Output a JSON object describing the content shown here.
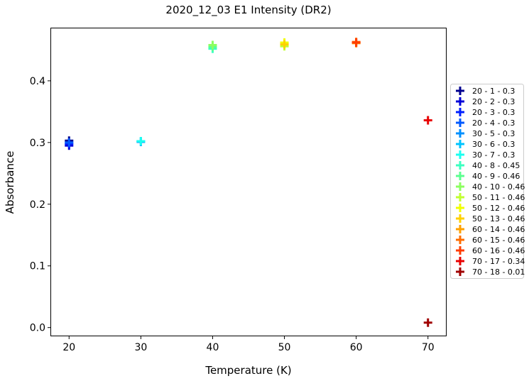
{
  "chart_data": {
    "type": "scatter",
    "title": "2020_12_03 E1 Intensity (DR2)",
    "xlabel": "Temperature (K)",
    "ylabel": "Absorbance",
    "xlim": [
      17.5,
      72.5
    ],
    "ylim": [
      -0.013,
      0.485
    ],
    "xticks": [
      20,
      30,
      40,
      50,
      60,
      70
    ],
    "yticks": [
      0.0,
      0.1,
      0.2,
      0.3,
      0.4
    ],
    "ytick_labels": [
      "0.0",
      "0.1",
      "0.2",
      "0.3",
      "0.4"
    ],
    "marker": "plus",
    "grid": false,
    "legend_position": "center-right outside",
    "series": [
      {
        "name": "20 - 1 - 0.3",
        "x": 20,
        "y": 0.303,
        "color": "#00008f"
      },
      {
        "name": "20 - 2 - 0.3",
        "x": 20,
        "y": 0.295,
        "color": "#0000d8"
      },
      {
        "name": "20 - 3 - 0.3",
        "x": 20,
        "y": 0.298,
        "color": "#0020ff"
      },
      {
        "name": "20 - 4 - 0.3",
        "x": 20,
        "y": 0.3,
        "color": "#005aff"
      },
      {
        "name": "30 - 5 - 0.3",
        "x": 30,
        "y": 0.301,
        "color": "#0090ff"
      },
      {
        "name": "30 - 6 - 0.3",
        "x": 30,
        "y": 0.302,
        "color": "#00c4ff"
      },
      {
        "name": "30 - 7 - 0.3",
        "x": 30,
        "y": 0.302,
        "color": "#1cfff0"
      },
      {
        "name": "40 - 8 - 0.45",
        "x": 40,
        "y": 0.452,
        "color": "#3cffc0"
      },
      {
        "name": "40 - 9 - 0.46",
        "x": 40,
        "y": 0.455,
        "color": "#5cff90"
      },
      {
        "name": "40 - 10 - 0.46",
        "x": 40,
        "y": 0.458,
        "color": "#8cff60"
      },
      {
        "name": "50 - 11 - 0.46",
        "x": 50,
        "y": 0.456,
        "color": "#c0ff30"
      },
      {
        "name": "50 - 12 - 0.46",
        "x": 50,
        "y": 0.462,
        "color": "#f0ff00"
      },
      {
        "name": "50 - 13 - 0.46",
        "x": 50,
        "y": 0.459,
        "color": "#ffd000"
      },
      {
        "name": "60 - 14 - 0.46",
        "x": 60,
        "y": 0.461,
        "color": "#ffa000"
      },
      {
        "name": "60 - 15 - 0.46",
        "x": 60,
        "y": 0.463,
        "color": "#ff6c00"
      },
      {
        "name": "60 - 16 - 0.46",
        "x": 60,
        "y": 0.462,
        "color": "#ff3c00"
      },
      {
        "name": "70 - 17 - 0.34",
        "x": 70,
        "y": 0.336,
        "color": "#e80000"
      },
      {
        "name": "70 - 18 - 0.01",
        "x": 70,
        "y": 0.008,
        "color": "#a00000"
      }
    ]
  }
}
